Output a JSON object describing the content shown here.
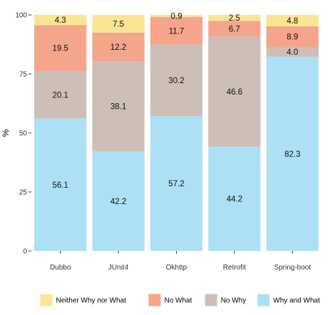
{
  "chart_data": {
    "type": "bar",
    "stacked": true,
    "categories": [
      "Dubbo",
      "JUnit4",
      "Okhttp",
      "Retrofit",
      "Spring-boot"
    ],
    "series": [
      {
        "name": "Why and What",
        "color": "#ADE0F5",
        "values": [
          56.1,
          42.2,
          57.2,
          44.2,
          82.3
        ]
      },
      {
        "name": "No Why",
        "color": "#CDBFB8",
        "values": [
          20.1,
          38.1,
          30.2,
          46.6,
          4.0
        ]
      },
      {
        "name": "No What",
        "color": "#F4A58B",
        "values": [
          19.5,
          12.2,
          11.7,
          6.7,
          8.9
        ]
      },
      {
        "name": "Neither Why nor What",
        "color": "#FBE594",
        "values": [
          4.3,
          7.5,
          0.9,
          2.5,
          4.8
        ]
      }
    ],
    "legend_order": [
      "Neither Why nor What",
      "No What",
      "No Why",
      "Why and What"
    ],
    "ylabel": "%",
    "xlabel": "",
    "ylim": [
      0,
      100
    ],
    "yticks": [
      0,
      25,
      50,
      75,
      100
    ],
    "legend_position": "bottom",
    "grid": false
  }
}
